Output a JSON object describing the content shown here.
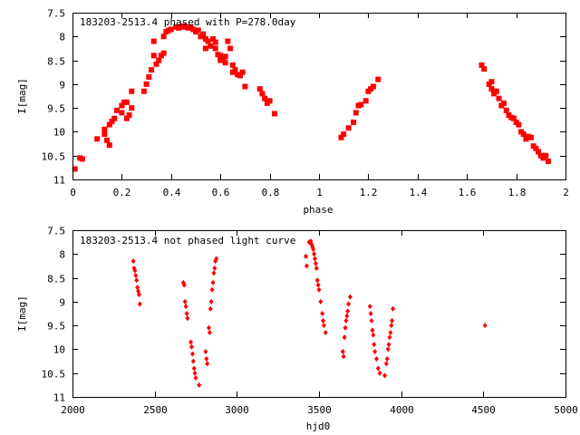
{
  "colors": {
    "marker": "#ff0000",
    "axis": "#000000",
    "background": "#ffffff"
  },
  "chart_data": [
    {
      "type": "scatter",
      "title": "183203-2513.4 phased with P=278.0day",
      "xlabel": "phase",
      "ylabel": "I[mag]",
      "xlim": [
        0,
        2
      ],
      "ylim": [
        7.5,
        11
      ],
      "y_inverted": true,
      "xticks": [
        "0",
        "0.2",
        "0.4",
        "0.6",
        "0.8",
        "1",
        "1.2",
        "1.4",
        "1.6",
        "1.8",
        "2"
      ],
      "yticks": [
        "7.5",
        "8",
        "8.5",
        "9",
        "9.5",
        "10",
        "10.5",
        "11"
      ],
      "marker": "square",
      "points": [
        [
          0.01,
          10.78
        ],
        [
          0.03,
          10.55
        ],
        [
          0.04,
          10.57
        ],
        [
          0.1,
          10.15
        ],
        [
          0.13,
          10.05
        ],
        [
          0.13,
          9.95
        ],
        [
          0.14,
          10.18
        ],
        [
          0.15,
          10.28
        ],
        [
          0.15,
          9.85
        ],
        [
          0.16,
          9.78
        ],
        [
          0.17,
          9.72
        ],
        [
          0.18,
          9.55
        ],
        [
          0.2,
          9.45
        ],
        [
          0.2,
          9.6
        ],
        [
          0.21,
          9.38
        ],
        [
          0.22,
          9.38
        ],
        [
          0.22,
          9.72
        ],
        [
          0.23,
          9.65
        ],
        [
          0.24,
          9.5
        ],
        [
          0.24,
          9.15
        ],
        [
          0.29,
          9.15
        ],
        [
          0.3,
          9.0
        ],
        [
          0.31,
          8.85
        ],
        [
          0.32,
          8.7
        ],
        [
          0.33,
          8.4
        ],
        [
          0.33,
          8.1
        ],
        [
          0.34,
          8.58
        ],
        [
          0.35,
          8.5
        ],
        [
          0.36,
          8.4
        ],
        [
          0.37,
          8.35
        ],
        [
          0.37,
          8.0
        ],
        [
          0.38,
          7.9
        ],
        [
          0.39,
          7.87
        ],
        [
          0.4,
          7.85
        ],
        [
          0.42,
          7.8
        ],
        [
          0.43,
          7.82
        ],
        [
          0.44,
          7.8
        ],
        [
          0.45,
          7.78
        ],
        [
          0.46,
          7.8
        ],
        [
          0.47,
          7.82
        ],
        [
          0.48,
          7.8
        ],
        [
          0.49,
          7.85
        ],
        [
          0.5,
          7.9
        ],
        [
          0.51,
          7.87
        ],
        [
          0.52,
          8.0
        ],
        [
          0.53,
          7.95
        ],
        [
          0.54,
          8.05
        ],
        [
          0.54,
          8.25
        ],
        [
          0.55,
          8.1
        ],
        [
          0.56,
          8.2
        ],
        [
          0.57,
          8.05
        ],
        [
          0.58,
          8.12
        ],
        [
          0.58,
          8.25
        ],
        [
          0.59,
          8.38
        ],
        [
          0.6,
          8.4
        ],
        [
          0.6,
          8.5
        ],
        [
          0.61,
          8.45
        ],
        [
          0.62,
          8.55
        ],
        [
          0.62,
          8.42
        ],
        [
          0.63,
          8.1
        ],
        [
          0.64,
          8.25
        ],
        [
          0.65,
          8.75
        ],
        [
          0.65,
          8.6
        ],
        [
          0.66,
          8.7
        ],
        [
          0.67,
          8.8
        ],
        [
          0.68,
          8.82
        ],
        [
          0.69,
          8.75
        ],
        [
          0.7,
          9.05
        ],
        [
          0.76,
          9.1
        ],
        [
          0.77,
          9.2
        ],
        [
          0.78,
          9.3
        ],
        [
          0.79,
          9.4
        ],
        [
          0.8,
          9.35
        ],
        [
          0.82,
          9.62
        ],
        [
          1.09,
          10.12
        ],
        [
          1.1,
          10.05
        ],
        [
          1.12,
          9.92
        ],
        [
          1.14,
          9.8
        ],
        [
          1.15,
          9.6
        ],
        [
          1.16,
          9.45
        ],
        [
          1.17,
          9.43
        ],
        [
          1.19,
          9.35
        ],
        [
          1.2,
          9.15
        ],
        [
          1.21,
          9.1
        ],
        [
          1.22,
          9.05
        ],
        [
          1.24,
          8.9
        ],
        [
          1.66,
          8.6
        ],
        [
          1.67,
          8.68
        ],
        [
          1.69,
          9.0
        ],
        [
          1.7,
          9.1
        ],
        [
          1.7,
          8.95
        ],
        [
          1.71,
          9.2
        ],
        [
          1.72,
          9.15
        ],
        [
          1.73,
          9.3
        ],
        [
          1.74,
          9.45
        ],
        [
          1.75,
          9.4
        ],
        [
          1.76,
          9.55
        ],
        [
          1.77,
          9.65
        ],
        [
          1.78,
          9.7
        ],
        [
          1.79,
          9.72
        ],
        [
          1.8,
          9.8
        ],
        [
          1.81,
          9.85
        ],
        [
          1.82,
          10.0
        ],
        [
          1.83,
          10.05
        ],
        [
          1.84,
          10.15
        ],
        [
          1.85,
          10.1
        ],
        [
          1.86,
          10.12
        ],
        [
          1.87,
          10.3
        ],
        [
          1.88,
          10.35
        ],
        [
          1.89,
          10.42
        ],
        [
          1.9,
          10.5
        ],
        [
          1.91,
          10.55
        ],
        [
          1.92,
          10.5
        ],
        [
          1.93,
          10.62
        ]
      ]
    },
    {
      "type": "scatter",
      "title": "183203-2513.4 not phased light curve",
      "xlabel": "hjd0",
      "ylabel": "I[mag]",
      "xlim": [
        2000,
        5000
      ],
      "ylim": [
        7.5,
        11
      ],
      "y_inverted": true,
      "xticks": [
        "2000",
        "2500",
        "3000",
        "3500",
        "4000",
        "4500",
        "5000"
      ],
      "yticks": [
        "7.5",
        "8",
        "8.5",
        "9",
        "9.5",
        "10",
        "10.5",
        "11"
      ],
      "marker": "diamond",
      "points": [
        [
          2370,
          8.15
        ],
        [
          2375,
          8.3
        ],
        [
          2380,
          8.35
        ],
        [
          2385,
          8.45
        ],
        [
          2390,
          8.55
        ],
        [
          2395,
          8.7
        ],
        [
          2400,
          8.78
        ],
        [
          2405,
          8.85
        ],
        [
          2410,
          9.05
        ],
        [
          2675,
          8.6
        ],
        [
          2680,
          8.65
        ],
        [
          2685,
          9.0
        ],
        [
          2690,
          9.1
        ],
        [
          2695,
          9.25
        ],
        [
          2700,
          9.35
        ],
        [
          2720,
          9.85
        ],
        [
          2725,
          9.95
        ],
        [
          2730,
          10.1
        ],
        [
          2735,
          10.25
        ],
        [
          2740,
          10.4
        ],
        [
          2745,
          10.5
        ],
        [
          2750,
          10.6
        ],
        [
          2770,
          10.75
        ],
        [
          2810,
          10.05
        ],
        [
          2815,
          10.2
        ],
        [
          2820,
          10.3
        ],
        [
          2830,
          9.55
        ],
        [
          2835,
          9.65
        ],
        [
          2840,
          9.15
        ],
        [
          2845,
          9.0
        ],
        [
          2850,
          8.75
        ],
        [
          2855,
          8.6
        ],
        [
          2860,
          8.4
        ],
        [
          2865,
          8.3
        ],
        [
          2870,
          8.15
        ],
        [
          2875,
          8.1
        ],
        [
          3420,
          8.05
        ],
        [
          3425,
          8.25
        ],
        [
          3440,
          7.75
        ],
        [
          3450,
          7.73
        ],
        [
          3455,
          7.8
        ],
        [
          3460,
          7.85
        ],
        [
          3465,
          7.9
        ],
        [
          3470,
          8.0
        ],
        [
          3475,
          8.1
        ],
        [
          3480,
          8.2
        ],
        [
          3485,
          8.3
        ],
        [
          3490,
          8.55
        ],
        [
          3495,
          8.65
        ],
        [
          3500,
          8.75
        ],
        [
          3510,
          9.0
        ],
        [
          3520,
          9.25
        ],
        [
          3525,
          9.4
        ],
        [
          3530,
          9.5
        ],
        [
          3540,
          9.65
        ],
        [
          3645,
          10.05
        ],
        [
          3650,
          10.15
        ],
        [
          3655,
          9.75
        ],
        [
          3660,
          9.55
        ],
        [
          3665,
          9.4
        ],
        [
          3670,
          9.3
        ],
        [
          3675,
          9.2
        ],
        [
          3680,
          9.05
        ],
        [
          3690,
          8.9
        ],
        [
          3810,
          9.1
        ],
        [
          3815,
          9.25
        ],
        [
          3820,
          9.4
        ],
        [
          3825,
          9.6
        ],
        [
          3830,
          9.7
        ],
        [
          3835,
          9.9
        ],
        [
          3840,
          10.05
        ],
        [
          3850,
          10.2
        ],
        [
          3860,
          10.4
        ],
        [
          3870,
          10.5
        ],
        [
          3900,
          10.55
        ],
        [
          3910,
          10.3
        ],
        [
          3915,
          10.2
        ],
        [
          3920,
          10.0
        ],
        [
          3925,
          9.9
        ],
        [
          3930,
          9.75
        ],
        [
          3935,
          9.65
        ],
        [
          3940,
          9.5
        ],
        [
          3945,
          9.4
        ],
        [
          3950,
          9.15
        ],
        [
          4510,
          9.5
        ]
      ]
    }
  ]
}
